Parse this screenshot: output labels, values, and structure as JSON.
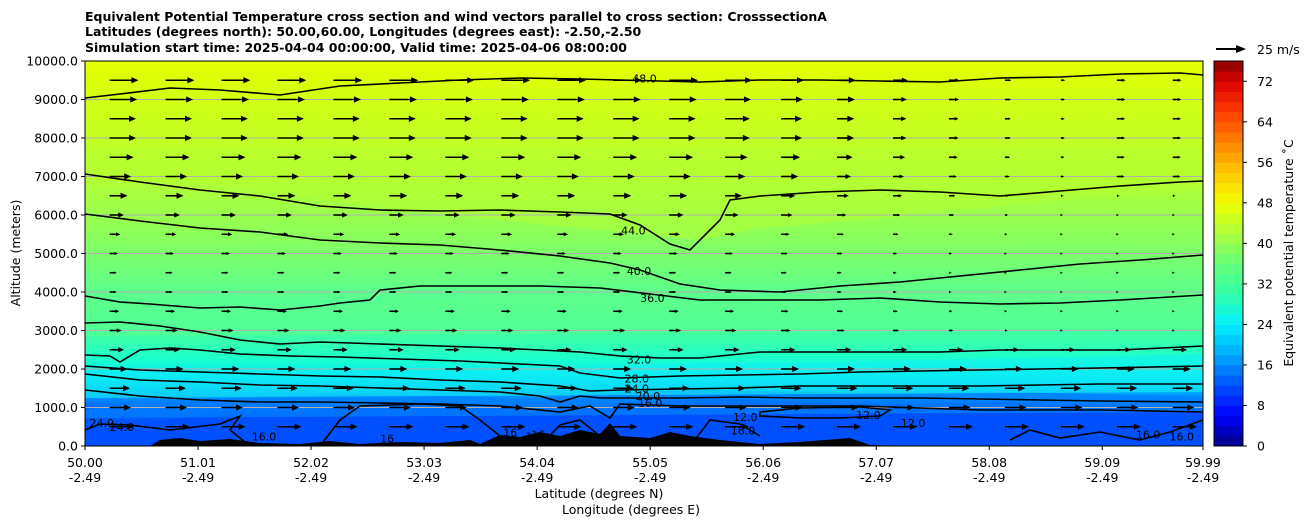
{
  "titles": [
    "Equivalent Potential Temperature cross section and wind vectors parallel to cross section: CrosssectionA",
    "Latitudes (degrees north): 50.00,60.00, Longitudes (degrees east): -2.50,-2.50",
    "Simulation start time: 2025-04-04 00:00:00, Valid time: 2025-04-06 08:00:00"
  ],
  "chart_data": {
    "type": "heatmap",
    "subtype": "filled-contour cross section with contour lines and wind vectors",
    "ylabel": "Altitude (meters)",
    "xlabel_lines": [
      "Latitude (degrees N)",
      "Longitude (degrees E)"
    ],
    "xlim": [
      50.0,
      59.99
    ],
    "ylim": [
      0,
      10000
    ],
    "y_ticks": [
      0,
      1000,
      2000,
      3000,
      4000,
      5000,
      6000,
      7000,
      8000,
      9000,
      10000
    ],
    "y_tick_labels": [
      "0.0",
      "1000.0",
      "2000.0",
      "3000.0",
      "4000.0",
      "5000.0",
      "6000.0",
      "7000.0",
      "8000.0",
      "9000.0",
      "10000.0"
    ],
    "x_ticks": [
      {
        "lat": "50.00",
        "lon": "-2.49"
      },
      {
        "lat": "51.01",
        "lon": "-2.49"
      },
      {
        "lat": "52.02",
        "lon": "-2.49"
      },
      {
        "lat": "53.03",
        "lon": "-2.49"
      },
      {
        "lat": "54.04",
        "lon": "-2.49"
      },
      {
        "lat": "55.05",
        "lon": "-2.49"
      },
      {
        "lat": "56.06",
        "lon": "-2.49"
      },
      {
        "lat": "57.07",
        "lon": "-2.49"
      },
      {
        "lat": "58.08",
        "lon": "-2.49"
      },
      {
        "lat": "59.09",
        "lon": "-2.49"
      },
      {
        "lat": "59.99",
        "lon": "-2.49"
      }
    ],
    "horizontal_grid": true,
    "colorbar": {
      "label": "Equivalent potential temperature ˚C",
      "range": [
        0,
        76
      ],
      "step": 2,
      "ticks": [
        0,
        8,
        16,
        24,
        32,
        40,
        48,
        56,
        64,
        72
      ]
    },
    "quiver_key": {
      "label": "25 m/s",
      "speed": 25
    },
    "contour_labels": [
      {
        "text": "48.0",
        "lat": 55.0,
        "alt": 9550
      },
      {
        "text": "44.0",
        "lat": 54.9,
        "alt": 5600
      },
      {
        "text": "40.0",
        "lat": 54.95,
        "alt": 4550
      },
      {
        "text": "36.0",
        "lat": 55.07,
        "alt": 3850
      },
      {
        "text": "32.0",
        "lat": 54.95,
        "alt": 2250
      },
      {
        "text": "28.0",
        "lat": 54.93,
        "alt": 1750
      },
      {
        "text": "24.0",
        "lat": 54.93,
        "alt": 1500
      },
      {
        "text": "20.0",
        "lat": 55.03,
        "alt": 1300
      },
      {
        "text": "16.0",
        "lat": 55.05,
        "alt": 1120
      },
      {
        "text": "12.0",
        "lat": 57.0,
        "alt": 800
      },
      {
        "text": "12.0",
        "lat": 57.4,
        "alt": 600
      },
      {
        "text": "24.0",
        "lat": 50.33,
        "alt": 500
      },
      {
        "text": "24.0",
        "lat": 50.15,
        "alt": 600
      },
      {
        "text": "16.0",
        "lat": 51.6,
        "alt": 250
      },
      {
        "text": "16",
        "lat": 52.7,
        "alt": 200
      },
      {
        "text": "16",
        "lat": 53.8,
        "alt": 350
      },
      {
        "text": "16",
        "lat": 54.0,
        "alt": 250
      },
      {
        "text": "16",
        "lat": 54.05,
        "alt": 300
      },
      {
        "text": "12.0",
        "lat": 55.9,
        "alt": 750
      },
      {
        "text": "16.0",
        "lat": 55.88,
        "alt": 400
      },
      {
        "text": "16.0",
        "lat": 59.5,
        "alt": 300
      },
      {
        "text": "16.0",
        "lat": 59.8,
        "alt": 250
      }
    ],
    "wind_profile": [
      {
        "alt": 500,
        "u": 20
      },
      {
        "alt": 1000,
        "u": 18
      },
      {
        "alt": 1500,
        "u": 17
      },
      {
        "alt": 2000,
        "u": 15
      },
      {
        "alt": 2500,
        "u": 12
      },
      {
        "alt": 3000,
        "u": 10
      },
      {
        "alt": 3500,
        "u": 8
      },
      {
        "alt": 4000,
        "u": 6
      },
      {
        "alt": 4500,
        "u": 6
      },
      {
        "alt": 5000,
        "u": 7
      },
      {
        "alt": 5500,
        "u": 9
      },
      {
        "alt": 6000,
        "u": 12
      },
      {
        "alt": 6500,
        "u": 15
      },
      {
        "alt": 7000,
        "u": 18
      },
      {
        "alt": 7500,
        "u": 20
      },
      {
        "alt": 8000,
        "u": 22
      },
      {
        "alt": 8500,
        "u": 22
      },
      {
        "alt": 9000,
        "u": 23
      },
      {
        "alt": 9500,
        "u": 24
      }
    ],
    "colors": {
      "top": "#e6ff00",
      "upper": "#c8ff1e",
      "mid": "#5cff8c",
      "low_mid": "#18ffd2",
      "low": "#00aaff",
      "surface": "#0050ff",
      "terrain": "#000000",
      "contour": "#000000"
    }
  }
}
